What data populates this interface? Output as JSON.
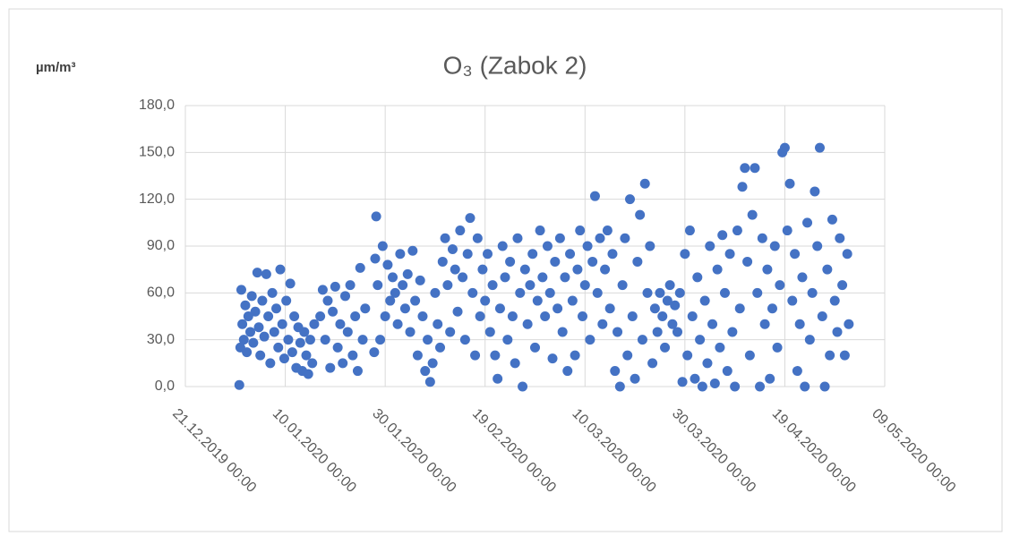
{
  "chart_data": {
    "type": "scatter",
    "title": "O₃ (Zabok 2)",
    "y_label": "µm/m³",
    "color": "#4472c4",
    "grid": true,
    "xlim": [
      43820,
      43960
    ],
    "xticks": [
      {
        "value": 43820,
        "label": "21.12.2019 00:00"
      },
      {
        "value": 43840,
        "label": "10.01.2020 00:00"
      },
      {
        "value": 43860,
        "label": "30.01.2020 00:00"
      },
      {
        "value": 43880,
        "label": "19.02.2020 00:00"
      },
      {
        "value": 43900,
        "label": "10.03.2020 00:00"
      },
      {
        "value": 43920,
        "label": "30.03.2020 00:00"
      },
      {
        "value": 43940,
        "label": "19.04.2020 00:00"
      },
      {
        "value": 43960,
        "label": "09.05.2020 00:00"
      }
    ],
    "ylim": [
      0,
      180
    ],
    "yticks": [
      {
        "value": 0,
        "label": "0,0"
      },
      {
        "value": 30,
        "label": "30,0"
      },
      {
        "value": 60,
        "label": "60,0"
      },
      {
        "value": 90,
        "label": "90,0"
      },
      {
        "value": 120,
        "label": "120,0"
      },
      {
        "value": 150,
        "label": "150,0"
      },
      {
        "value": 180,
        "label": "180,0"
      }
    ],
    "x": [
      43830.8,
      43831.0,
      43831.2,
      43831.4,
      43831.7,
      43832.0,
      43832.3,
      43832.6,
      43833.0,
      43833.3,
      43833.6,
      43834.0,
      43834.4,
      43834.7,
      43835.0,
      43835.4,
      43835.8,
      43836.2,
      43836.6,
      43837.0,
      43837.4,
      43837.8,
      43838.2,
      43838.6,
      43839.0,
      43839.4,
      43839.8,
      43840.2,
      43840.6,
      43841.0,
      43841.4,
      43841.8,
      43842.2,
      43842.6,
      43843.0,
      43843.4,
      43843.8,
      43844.2,
      43844.6,
      43845.0,
      43845.4,
      43845.8,
      43847.0,
      43847.5,
      43848.0,
      43848.5,
      43849.0,
      43849.5,
      43850.0,
      43850.5,
      43851.0,
      43851.5,
      43852.0,
      43852.5,
      43853.0,
      43853.5,
      43854.0,
      43854.5,
      43855.0,
      43855.5,
      43856.0,
      43857.8,
      43858.0,
      43858.2,
      43858.5,
      43859.0,
      43859.5,
      43860.0,
      43860.5,
      43861.0,
      43861.5,
      43862.0,
      43862.5,
      43863.0,
      43863.5,
      43864.0,
      43864.5,
      43865.0,
      43865.5,
      43866.0,
      43866.5,
      43867.0,
      43867.5,
      43868.0,
      43868.5,
      43869.0,
      43869.5,
      43870.0,
      43870.5,
      43871.0,
      43871.5,
      43872.0,
      43872.5,
      43873.0,
      43873.5,
      43874.0,
      43874.5,
      43875.0,
      43875.5,
      43876.0,
      43876.5,
      43877.0,
      43877.5,
      43878.0,
      43878.5,
      43879.0,
      43879.5,
      43880.0,
      43880.5,
      43881.0,
      43881.5,
      43882.0,
      43882.5,
      43883.0,
      43883.5,
      43884.0,
      43884.5,
      43885.0,
      43885.5,
      43886.0,
      43886.5,
      43887.0,
      43887.5,
      43888.0,
      43888.5,
      43889.0,
      43889.5,
      43890.0,
      43890.5,
      43891.0,
      43891.5,
      43892.0,
      43892.5,
      43893.0,
      43893.5,
      43894.0,
      43894.5,
      43895.0,
      43895.5,
      43896.0,
      43896.5,
      43897.0,
      43897.5,
      43898.0,
      43898.5,
      43899.0,
      43899.5,
      43900.0,
      43900.5,
      43901.0,
      43901.5,
      43902.0,
      43902.5,
      43903.0,
      43903.5,
      43904.0,
      43904.5,
      43905.0,
      43905.5,
      43906.0,
      43906.5,
      43907.0,
      43907.5,
      43908.0,
      43908.5,
      43909.0,
      43909.5,
      43910.0,
      43910.5,
      43911.0,
      43911.5,
      43912.0,
      43912.5,
      43913.0,
      43913.5,
      43914.0,
      43914.5,
      43915.0,
      43915.5,
      43916.0,
      43916.5,
      43917.0,
      43917.5,
      43918.0,
      43918.5,
      43919.0,
      43919.5,
      43920.0,
      43920.5,
      43921.0,
      43921.5,
      43922.0,
      43922.5,
      43923.0,
      43923.5,
      43924.0,
      43924.5,
      43925.0,
      43925.5,
      43926.0,
      43926.5,
      43927.0,
      43927.5,
      43928.0,
      43928.5,
      43929.0,
      43929.5,
      43930.0,
      43930.5,
      43931.0,
      43931.5,
      43932.0,
      43932.5,
      43933.0,
      43933.5,
      43934.0,
      43934.5,
      43935.0,
      43935.5,
      43936.0,
      43936.5,
      43937.0,
      43937.5,
      43938.0,
      43938.5,
      43939.0,
      43939.5,
      43940.0,
      43940.5,
      43941.0,
      43941.5,
      43942.0,
      43942.5,
      43943.0,
      43943.5,
      43944.0,
      43944.5,
      43945.0,
      43945.5,
      43946.0,
      43946.5,
      43947.0,
      43947.5,
      43948.0,
      43948.5,
      43949.0,
      43949.5,
      43950.0,
      43950.5,
      43951.0,
      43951.5,
      43952.0,
      43952.5,
      43952.8
    ],
    "values": [
      1,
      25,
      62,
      40,
      30,
      52,
      22,
      45,
      35,
      58,
      28,
      48,
      73,
      38,
      20,
      55,
      32,
      72,
      45,
      15,
      60,
      35,
      50,
      25,
      75,
      40,
      18,
      55,
      30,
      66,
      22,
      45,
      12,
      38,
      28,
      10,
      35,
      20,
      8,
      30,
      15,
      40,
      45,
      62,
      30,
      55,
      12,
      48,
      64,
      25,
      40,
      15,
      58,
      35,
      65,
      20,
      45,
      10,
      76,
      30,
      50,
      22,
      82,
      109,
      65,
      30,
      90,
      45,
      78,
      55,
      70,
      60,
      40,
      85,
      65,
      50,
      72,
      35,
      87,
      55,
      20,
      68,
      45,
      10,
      30,
      3,
      15,
      60,
      40,
      25,
      80,
      95,
      65,
      35,
      88,
      75,
      48,
      100,
      70,
      30,
      85,
      108,
      60,
      20,
      95,
      45,
      75,
      55,
      85,
      35,
      65,
      20,
      5,
      50,
      90,
      70,
      30,
      80,
      45,
      15,
      95,
      60,
      0,
      75,
      40,
      65,
      85,
      25,
      55,
      100,
      70,
      45,
      90,
      60,
      18,
      80,
      50,
      95,
      35,
      70,
      10,
      85,
      55,
      20,
      75,
      100,
      45,
      65,
      90,
      30,
      80,
      122,
      60,
      95,
      40,
      75,
      100,
      50,
      85,
      10,
      35,
      0,
      65,
      95,
      20,
      120,
      45,
      5,
      80,
      110,
      30,
      130,
      60,
      90,
      15,
      50,
      35,
      60,
      45,
      25,
      55,
      65,
      40,
      52,
      35,
      60,
      3,
      85,
      20,
      100,
      45,
      5,
      70,
      30,
      0,
      55,
      15,
      90,
      40,
      2,
      75,
      25,
      97,
      60,
      10,
      85,
      35,
      0,
      100,
      50,
      128,
      140,
      80,
      20,
      110,
      140,
      60,
      0,
      95,
      40,
      75,
      5,
      50,
      90,
      25,
      65,
      150,
      153,
      100,
      130,
      55,
      85,
      10,
      40,
      70,
      0,
      105,
      30,
      60,
      125,
      90,
      153,
      45,
      0,
      75,
      20,
      107,
      55,
      35,
      95,
      65,
      20,
      85,
      40
    ]
  }
}
